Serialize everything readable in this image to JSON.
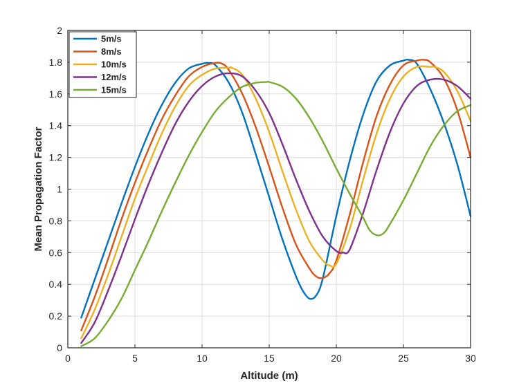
{
  "chart_data": {
    "type": "line",
    "title": "",
    "xlabel": "Altitude (m)",
    "ylabel": "Mean Propagation Factor",
    "xlim": [
      0,
      30
    ],
    "ylim": [
      0,
      2
    ],
    "xticks": [
      0,
      5,
      10,
      15,
      20,
      25,
      30
    ],
    "yticks": [
      0,
      0.2,
      0.4,
      0.6,
      0.8,
      1,
      1.2,
      1.4,
      1.6,
      1.8,
      2
    ],
    "grid": true,
    "legend_position": "top-left",
    "series": [
      {
        "name": "5m/s",
        "color": "#0072BD",
        "x": [
          1,
          2,
          3,
          4,
          5,
          6,
          7,
          8,
          9,
          10,
          10.5,
          11,
          12,
          13,
          14,
          15,
          16,
          17,
          17.5,
          18,
          18.5,
          19,
          20,
          21,
          22,
          23,
          24,
          25,
          25.4,
          26,
          27,
          28,
          29,
          30
        ],
        "y": [
          0.19,
          0.43,
          0.67,
          0.91,
          1.14,
          1.35,
          1.53,
          1.67,
          1.76,
          1.79,
          1.795,
          1.78,
          1.67,
          1.48,
          1.22,
          0.95,
          0.68,
          0.45,
          0.36,
          0.31,
          0.33,
          0.44,
          0.83,
          1.18,
          1.47,
          1.68,
          1.78,
          1.81,
          1.815,
          1.79,
          1.63,
          1.42,
          1.16,
          0.83
        ]
      },
      {
        "name": "8m/s",
        "color": "#D95319",
        "x": [
          1,
          2,
          3,
          4,
          5,
          6,
          7,
          8,
          9,
          10,
          11,
          11.5,
          12,
          13,
          14,
          15,
          16,
          17,
          18,
          18.5,
          19,
          19.5,
          20,
          21,
          22,
          23,
          24,
          25,
          26,
          26.5,
          27,
          28,
          29,
          30
        ],
        "y": [
          0.11,
          0.32,
          0.56,
          0.81,
          1.04,
          1.25,
          1.44,
          1.59,
          1.71,
          1.77,
          1.795,
          1.79,
          1.75,
          1.6,
          1.39,
          1.14,
          0.88,
          0.65,
          0.5,
          0.45,
          0.44,
          0.47,
          0.55,
          0.84,
          1.17,
          1.46,
          1.66,
          1.78,
          1.81,
          1.815,
          1.8,
          1.7,
          1.5,
          1.2
        ]
      },
      {
        "name": "10m/s",
        "color": "#EDB120",
        "x": [
          1,
          2,
          3,
          4,
          5,
          6,
          7,
          8,
          9,
          10,
          11,
          12,
          12.2,
          13,
          14,
          15,
          16,
          17,
          18,
          19,
          19.5,
          20,
          21,
          22,
          23,
          24,
          25,
          26,
          27,
          27.3,
          28,
          29,
          30
        ],
        "y": [
          0.06,
          0.24,
          0.46,
          0.7,
          0.94,
          1.15,
          1.35,
          1.52,
          1.65,
          1.72,
          1.76,
          1.765,
          1.765,
          1.72,
          1.57,
          1.36,
          1.11,
          0.87,
          0.67,
          0.55,
          0.52,
          0.53,
          0.75,
          1.06,
          1.35,
          1.57,
          1.71,
          1.77,
          1.77,
          1.77,
          1.74,
          1.62,
          1.43
        ]
      },
      {
        "name": "12m/s",
        "color": "#7E2F8E",
        "x": [
          1,
          2,
          3,
          4,
          5,
          6,
          7,
          8,
          9,
          10,
          11,
          12,
          13,
          14,
          15,
          16,
          17,
          18,
          19,
          20,
          20.5,
          21,
          22,
          23,
          24,
          25,
          26,
          27,
          28,
          29,
          30
        ],
        "y": [
          0.03,
          0.16,
          0.36,
          0.58,
          0.81,
          1.03,
          1.23,
          1.41,
          1.55,
          1.65,
          1.71,
          1.73,
          1.71,
          1.62,
          1.48,
          1.28,
          1.06,
          0.86,
          0.7,
          0.61,
          0.6,
          0.62,
          0.85,
          1.12,
          1.36,
          1.54,
          1.65,
          1.69,
          1.69,
          1.65,
          1.57
        ]
      },
      {
        "name": "15m/s",
        "color": "#77AC30",
        "x": [
          1,
          2,
          3,
          4,
          5,
          6,
          7,
          8,
          9,
          10,
          11,
          12,
          13,
          14,
          14.8,
          15,
          16,
          17,
          18,
          19,
          20,
          21,
          22,
          22.5,
          23,
          23.5,
          24,
          25,
          26,
          27,
          28,
          29,
          30
        ],
        "y": [
          0.01,
          0.06,
          0.17,
          0.31,
          0.49,
          0.67,
          0.86,
          1.04,
          1.21,
          1.36,
          1.49,
          1.58,
          1.645,
          1.67,
          1.675,
          1.675,
          1.645,
          1.57,
          1.45,
          1.3,
          1.13,
          0.97,
          0.82,
          0.74,
          0.71,
          0.72,
          0.78,
          0.93,
          1.1,
          1.27,
          1.4,
          1.49,
          1.53
        ]
      }
    ]
  }
}
